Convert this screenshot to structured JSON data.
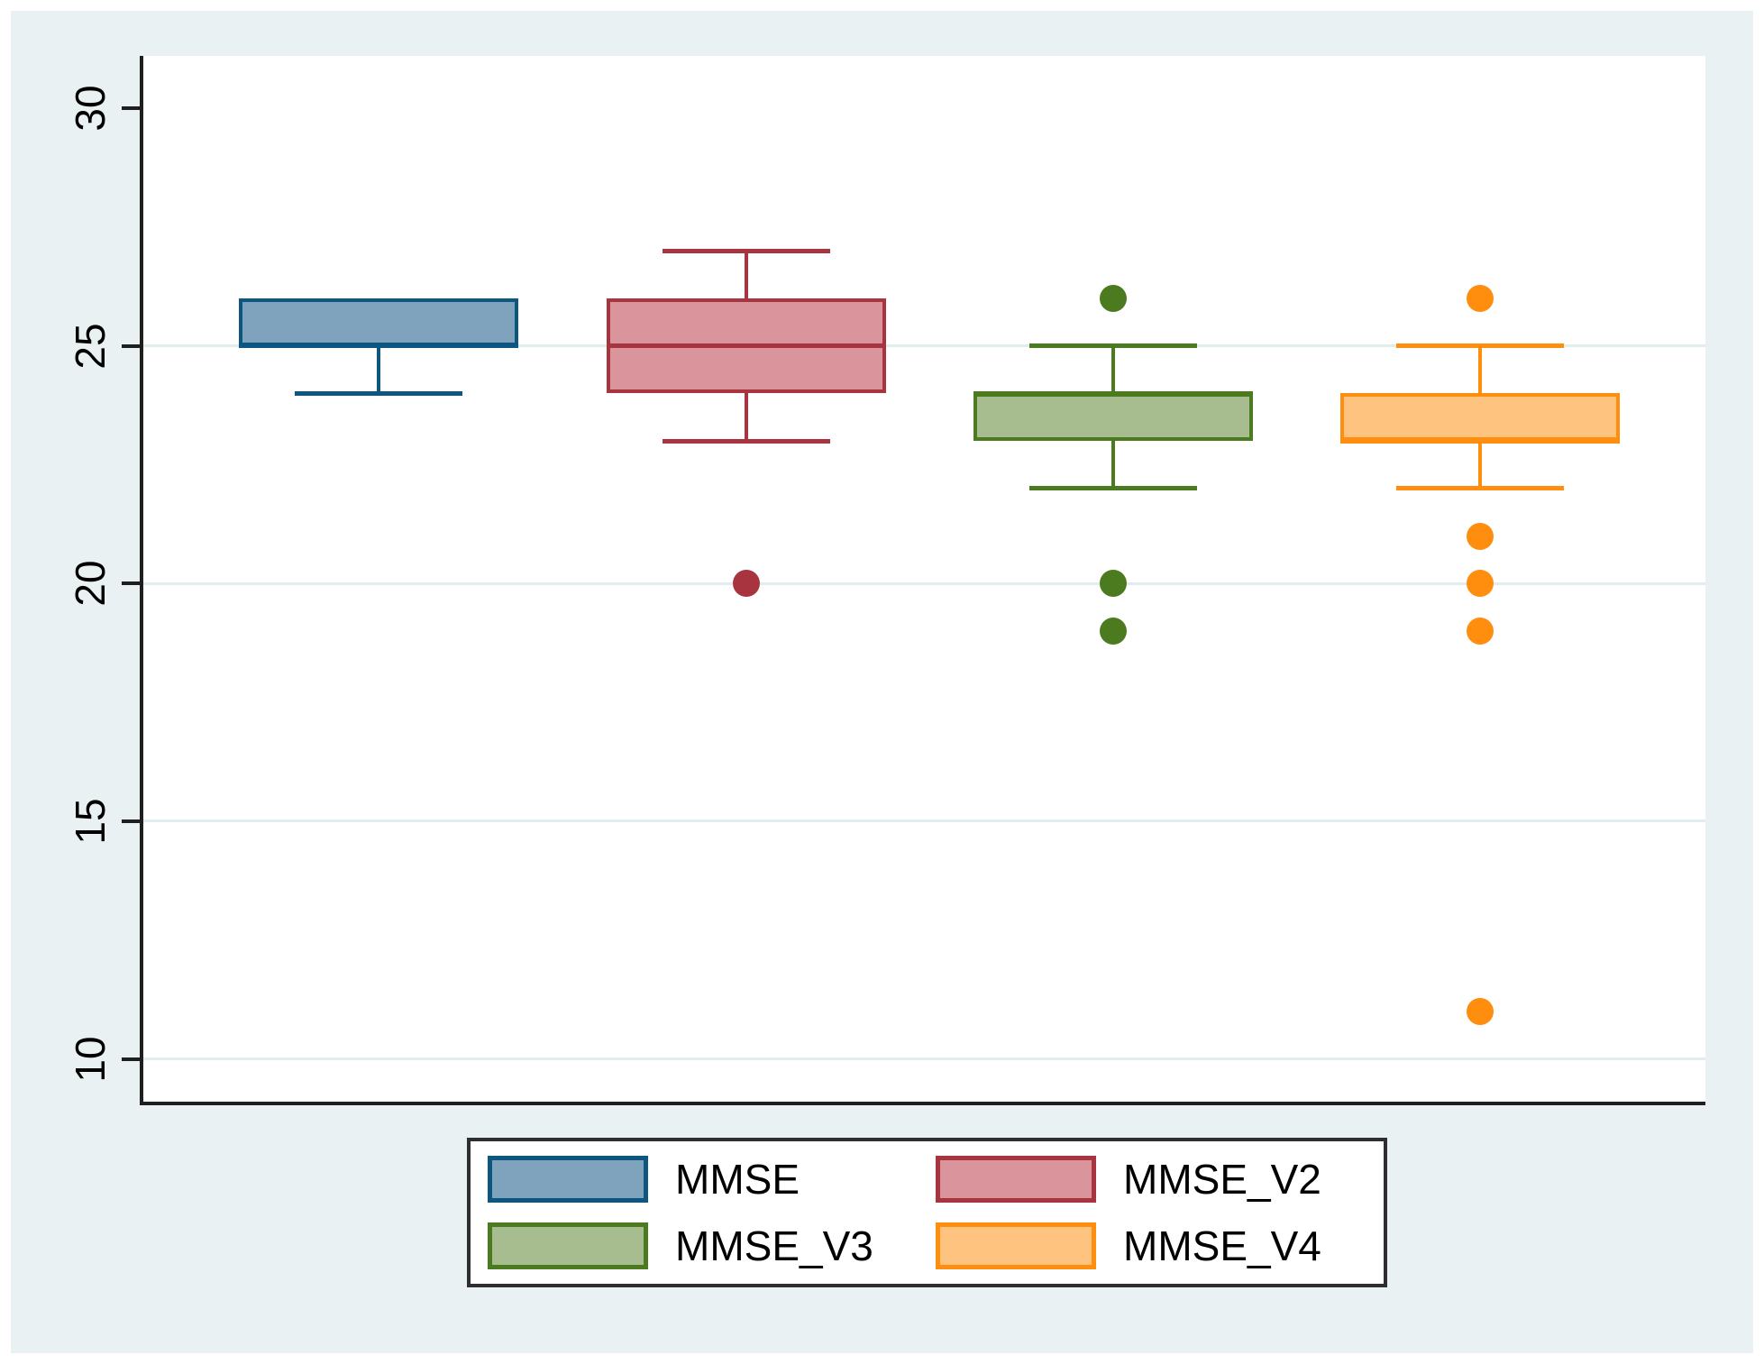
{
  "figure": {
    "page_background": "#ffffff",
    "canvas_background": "#e9f1f2",
    "plot_background": "#ffffff",
    "axis_color": "#1f1f1f",
    "gridline_color": "#e0edef",
    "legend_border_color": "#2e2e2e"
  },
  "chart_data": {
    "type": "box",
    "title": "",
    "xlabel": "",
    "ylabel": "",
    "categories": [
      "MMSE",
      "MMSE_V2",
      "MMSE_V3",
      "MMSE_V4"
    ],
    "series": [
      {
        "name": "MMSE",
        "q1": 25,
        "median": 25,
        "q3": 26,
        "whisker_low": 24,
        "whisker_high": 26,
        "outliers": [],
        "fill": "#7fa3bc",
        "stroke": "#0c5680"
      },
      {
        "name": "MMSE_V2",
        "q1": 24,
        "median": 25,
        "q3": 26,
        "whisker_low": 23,
        "whisker_high": 27,
        "outliers": [
          20
        ],
        "fill": "#d9949c",
        "stroke": "#a83440"
      },
      {
        "name": "MMSE_V3",
        "q1": 23,
        "median": 24,
        "q3": 24,
        "whisker_low": 22,
        "whisker_high": 25,
        "outliers": [
          26,
          20,
          19
        ],
        "fill": "#a7bd90",
        "stroke": "#4b7a1f"
      },
      {
        "name": "MMSE_V4",
        "q1": 23,
        "median": 23,
        "q3": 24,
        "whisker_low": 22,
        "whisker_high": 25,
        "outliers": [
          26,
          21,
          20,
          19,
          11
        ],
        "fill": "#ffc380",
        "stroke": "#ff8d0e"
      }
    ],
    "yticks": [
      10,
      15,
      20,
      25,
      30
    ],
    "gridline_values": [
      10,
      15,
      20,
      25
    ],
    "ylim": [
      9.1,
      31.1
    ],
    "ytick_label_angle": -90,
    "grid": true,
    "legend_position": "bottom"
  }
}
